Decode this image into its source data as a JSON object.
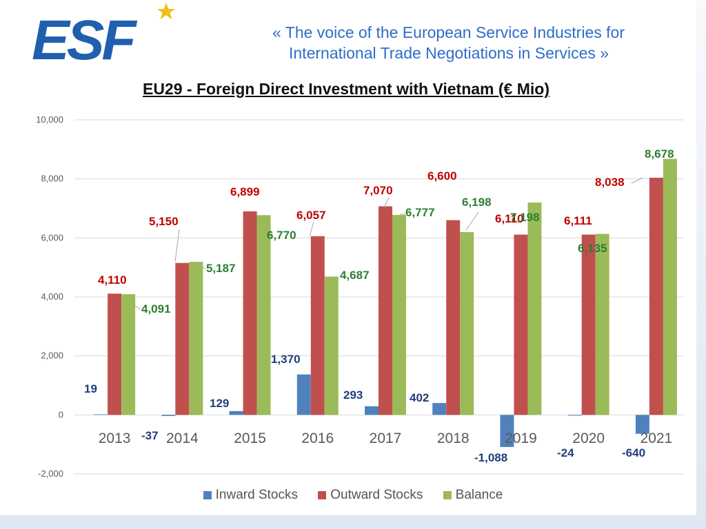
{
  "header": {
    "logo_text": "ESF",
    "tagline_line1": "«  The voice of the European Service Industries for",
    "tagline_line2": "International Trade Negotiations in Services  »"
  },
  "colors": {
    "inward": "#4f81bd",
    "outward": "#c0504d",
    "balance": "#9bbb59",
    "inward_label": "#1f3d7a",
    "outward_label": "#c00000",
    "balance_label": "#2e7d32",
    "tagline": "#2f6cc9",
    "logo_blue": "#1f5fae",
    "logo_star": "#f2c014"
  },
  "chart_data": {
    "type": "bar",
    "title": "EU29 - Foreign Direct Investment with Vietnam (€ Mio)",
    "categories": [
      "2013",
      "2014",
      "2015",
      "2016",
      "2017",
      "2018",
      "2019",
      "2020",
      "2021"
    ],
    "series": [
      {
        "name": "Inward Stocks",
        "values": [
          19,
          -37,
          129,
          1370,
          293,
          402,
          -1088,
          -24,
          -640
        ],
        "labels": [
          "19",
          "-37",
          "129",
          "1,370",
          "293",
          "402",
          "-1,088",
          "-24",
          "-640"
        ]
      },
      {
        "name": "Outward Stocks",
        "values": [
          4110,
          5150,
          6899,
          6057,
          7070,
          6600,
          6110,
          6111,
          8038
        ],
        "labels": [
          "4,110",
          "5,150",
          "6,899",
          "6,057",
          "7,070",
          "6,600",
          "6,110",
          "6,111",
          "8,038"
        ]
      },
      {
        "name": "Balance",
        "values": [
          4091,
          5187,
          6770,
          4687,
          6777,
          6198,
          7198,
          6135,
          8678
        ],
        "labels": [
          "4,091",
          "5,187",
          "6,770",
          "4,687",
          "6,777",
          "6,198",
          "7,198",
          "6,135",
          "8,678"
        ]
      }
    ],
    "y_ticks": [
      "-2,000",
      "0",
      "2,000",
      "4,000",
      "6,000",
      "8,000",
      "10,000"
    ],
    "ylim": [
      -2000,
      10000
    ],
    "grid": true,
    "legend_position": "bottom"
  }
}
